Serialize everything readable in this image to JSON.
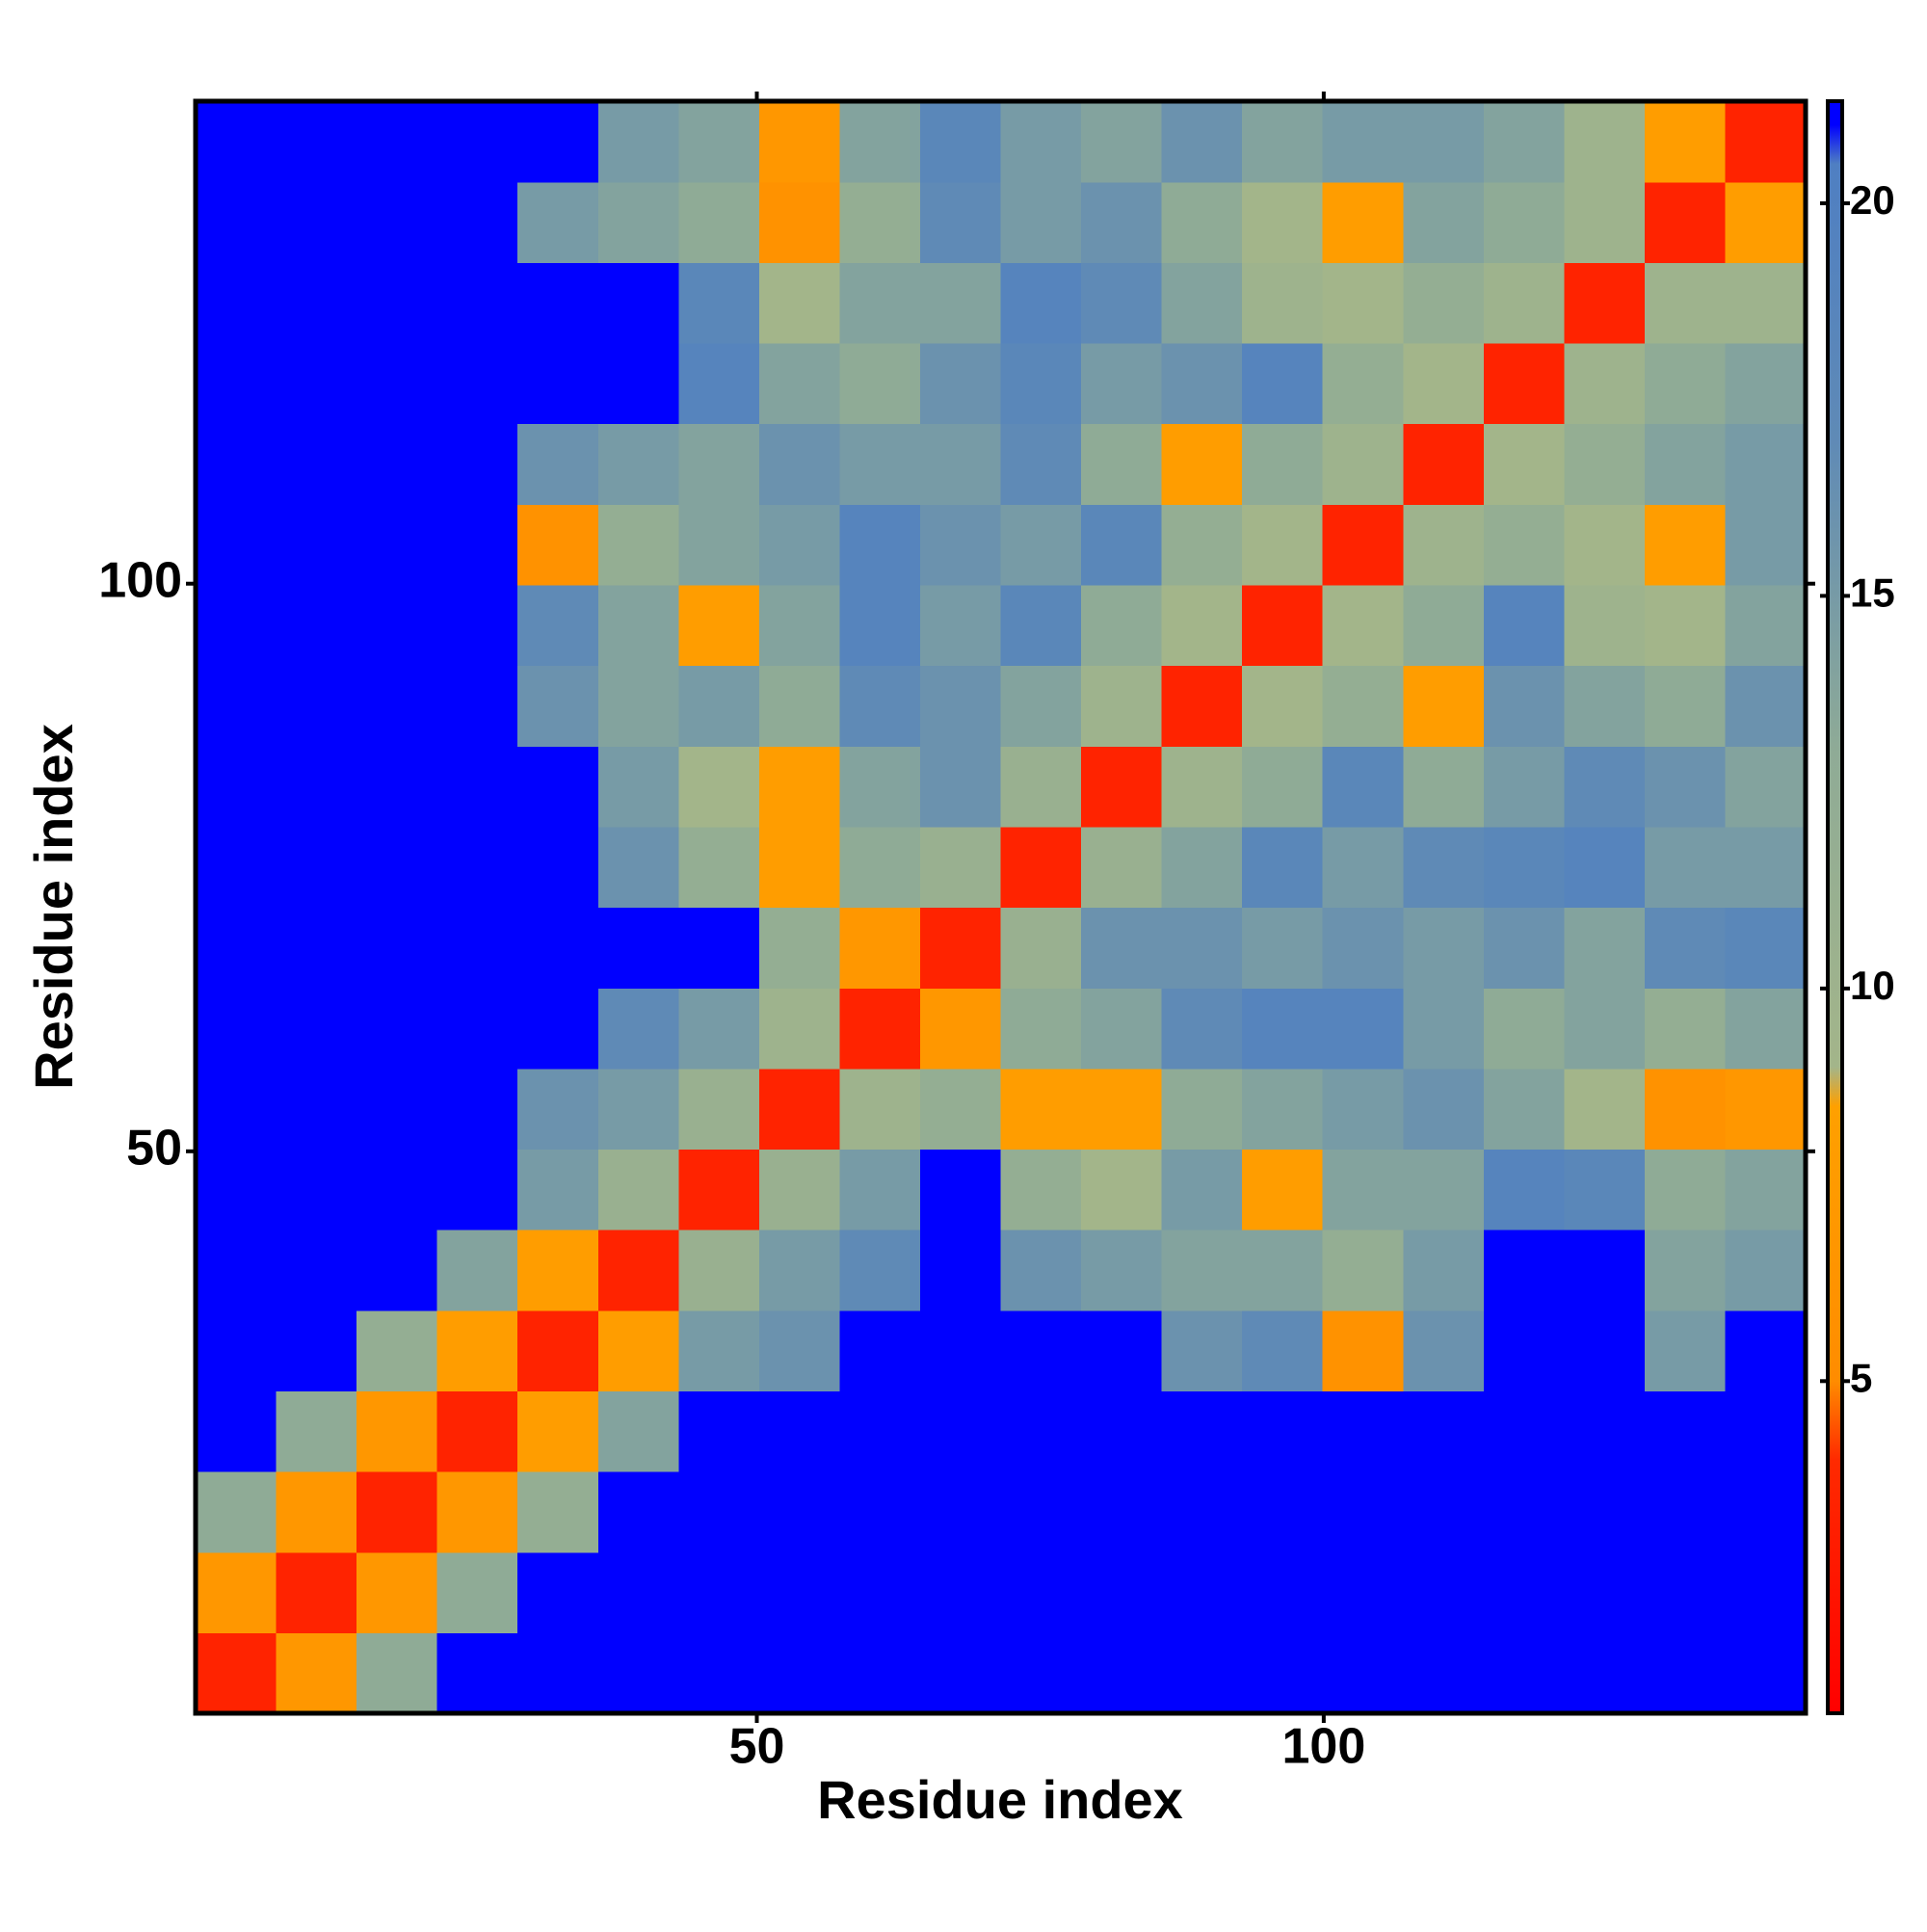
{
  "chart_data": {
    "type": "heatmap",
    "x_label": "Residue index",
    "y_label": "Residue index",
    "xbins": [
      0.5,
      7.6,
      14.7,
      21.8,
      28.9,
      36,
      43.1,
      50.2,
      57.3,
      64.4,
      71.5,
      78.6,
      85.7,
      92.8,
      99.9,
      107,
      114.1,
      121.2,
      128.3,
      135.4,
      142.5
    ],
    "ybins": [
      0.5,
      7.6,
      14.7,
      21.8,
      28.9,
      36,
      43.1,
      50.2,
      57.3,
      64.4,
      71.5,
      78.6,
      85.7,
      92.8,
      99.9,
      107,
      114.1,
      121.2,
      128.3,
      135.4,
      142.5
    ],
    "z": [
      [
        3.5,
        7,
        13,
        21,
        21,
        21,
        21,
        21,
        21,
        21,
        21,
        21,
        21,
        21,
        21,
        21,
        21,
        21,
        21,
        21
      ],
      [
        7,
        3.5,
        7,
        13,
        21,
        21,
        21,
        21,
        21,
        21,
        21,
        21,
        21,
        21,
        21,
        21,
        21,
        21,
        21,
        21
      ],
      [
        13,
        7,
        3.5,
        7,
        12,
        21,
        21,
        21,
        21,
        21,
        21,
        21,
        21,
        21,
        21,
        21,
        21,
        21,
        21,
        21
      ],
      [
        21,
        13,
        7,
        3.5,
        8,
        14,
        21,
        21,
        21,
        21,
        21,
        21,
        21,
        21,
        21,
        21,
        21,
        21,
        21,
        21
      ],
      [
        21,
        21,
        12,
        8,
        3.5,
        8,
        15,
        16,
        21,
        21,
        21,
        21,
        16,
        17,
        6,
        16,
        21,
        21,
        15,
        21
      ],
      [
        21,
        21,
        21,
        14,
        8,
        3.5,
        11,
        15,
        17,
        21,
        16,
        15,
        14,
        14,
        12,
        15,
        21,
        21,
        14,
        15
      ],
      [
        21,
        21,
        21,
        21,
        15,
        11,
        3.5,
        11,
        15,
        21,
        12,
        9,
        15,
        8,
        14,
        14,
        19,
        18,
        13,
        14
      ],
      [
        21,
        21,
        21,
        21,
        16,
        15,
        11,
        3.5,
        10,
        12,
        8,
        8,
        13,
        14,
        15,
        16,
        14,
        9,
        6,
        7
      ],
      [
        21,
        21,
        21,
        21,
        21,
        17,
        15,
        10,
        3.5,
        7,
        13,
        14,
        17,
        19,
        19,
        15,
        13,
        14,
        12,
        14
      ],
      [
        21,
        21,
        21,
        21,
        21,
        21,
        21,
        12,
        7,
        3.5,
        11,
        16,
        16,
        15,
        16,
        15,
        16,
        14,
        17,
        18
      ],
      [
        21,
        21,
        21,
        21,
        21,
        16,
        12,
        8,
        13,
        11,
        3.5,
        11,
        14,
        18,
        15,
        17,
        18,
        19,
        15,
        15
      ],
      [
        21,
        21,
        21,
        21,
        21,
        15,
        9,
        8,
        14,
        16,
        11,
        3.5,
        10,
        13,
        18,
        13,
        15,
        17,
        16,
        14
      ],
      [
        21,
        21,
        21,
        21,
        16,
        14,
        15,
        13,
        17,
        16,
        14,
        10,
        3.5,
        9,
        12,
        8,
        16,
        14,
        13,
        16
      ],
      [
        21,
        21,
        21,
        21,
        17,
        14,
        8,
        14,
        19,
        15,
        18,
        13,
        9,
        3.5,
        9,
        13,
        19,
        10,
        9,
        14
      ],
      [
        21,
        21,
        21,
        21,
        6,
        12,
        14,
        15,
        19,
        16,
        15,
        18,
        12,
        9,
        3.5,
        10,
        12,
        9,
        8,
        15
      ],
      [
        21,
        21,
        21,
        21,
        16,
        15,
        14,
        16,
        15,
        15,
        17,
        13,
        8,
        13,
        10,
        3.5,
        9,
        12,
        14,
        15
      ],
      [
        21,
        21,
        21,
        21,
        21,
        21,
        19,
        14,
        13,
        16,
        18,
        15,
        16,
        19,
        12,
        9,
        3.5,
        10,
        13,
        14
      ],
      [
        21,
        21,
        21,
        21,
        21,
        21,
        18,
        9,
        14,
        14,
        19,
        17,
        14,
        10,
        9,
        12,
        10,
        3.5,
        10,
        10
      ],
      [
        21,
        21,
        21,
        21,
        15,
        14,
        13,
        6,
        12,
        17,
        15,
        16,
        13,
        9,
        8,
        14,
        13,
        10,
        3.5,
        8
      ],
      [
        21,
        21,
        21,
        21,
        21,
        15,
        14,
        7,
        14,
        18,
        15,
        14,
        16,
        14,
        15,
        15,
        14,
        10,
        8,
        3.5
      ]
    ],
    "xlim": [
      0.5,
      142.5
    ],
    "ylim": [
      0.5,
      142.5
    ],
    "xticks": [
      50,
      100
    ],
    "yticks": [
      50,
      100
    ],
    "zlim": [
      0.77,
      21.3
    ],
    "zticks": [
      5,
      10,
      15,
      20
    ],
    "colorscale": [
      [
        0.77,
        "#ff0000"
      ],
      [
        4,
        "#ff2a00"
      ],
      [
        5,
        "#ff8c00"
      ],
      [
        8.5,
        "#ffa000"
      ],
      [
        9,
        "#a3b58a"
      ],
      [
        13,
        "#8fab96"
      ],
      [
        17,
        "#5f8ab6"
      ],
      [
        20.5,
        "#4f7fc2"
      ],
      [
        21,
        "#0000ff"
      ],
      [
        21.3,
        "#0000ff"
      ]
    ]
  }
}
